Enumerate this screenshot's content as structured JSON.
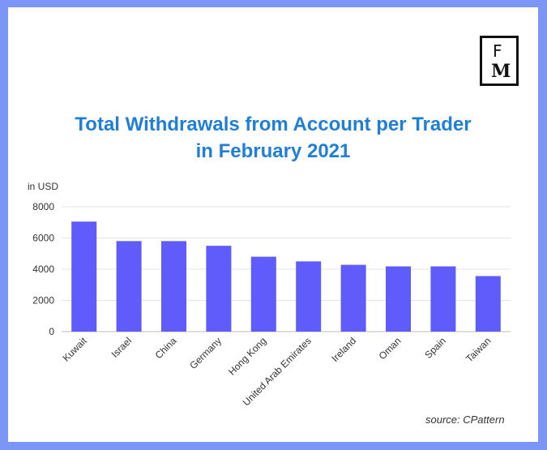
{
  "logo": {
    "line1": "F",
    "line2": "M"
  },
  "source": "source: CPattern",
  "chart_data": {
    "type": "bar",
    "title_lines": [
      "Total Withdrawals from Account per Trader",
      "in February 2021"
    ],
    "ylabel": "in USD",
    "categories": [
      "Kuwait",
      "Israel",
      "China",
      "Germany",
      "Hong Kong",
      "United Arab Emirates",
      "Ireland",
      "Oman",
      "Spain",
      "Taiwan"
    ],
    "values": [
      7050,
      5800,
      5800,
      5500,
      4800,
      4500,
      4280,
      4180,
      4180,
      3560
    ],
    "ylim": [
      0,
      8000
    ],
    "yticks": [
      0,
      2000,
      4000,
      6000,
      8000
    ],
    "grid": true,
    "bar_color": "#5f5cfb"
  }
}
